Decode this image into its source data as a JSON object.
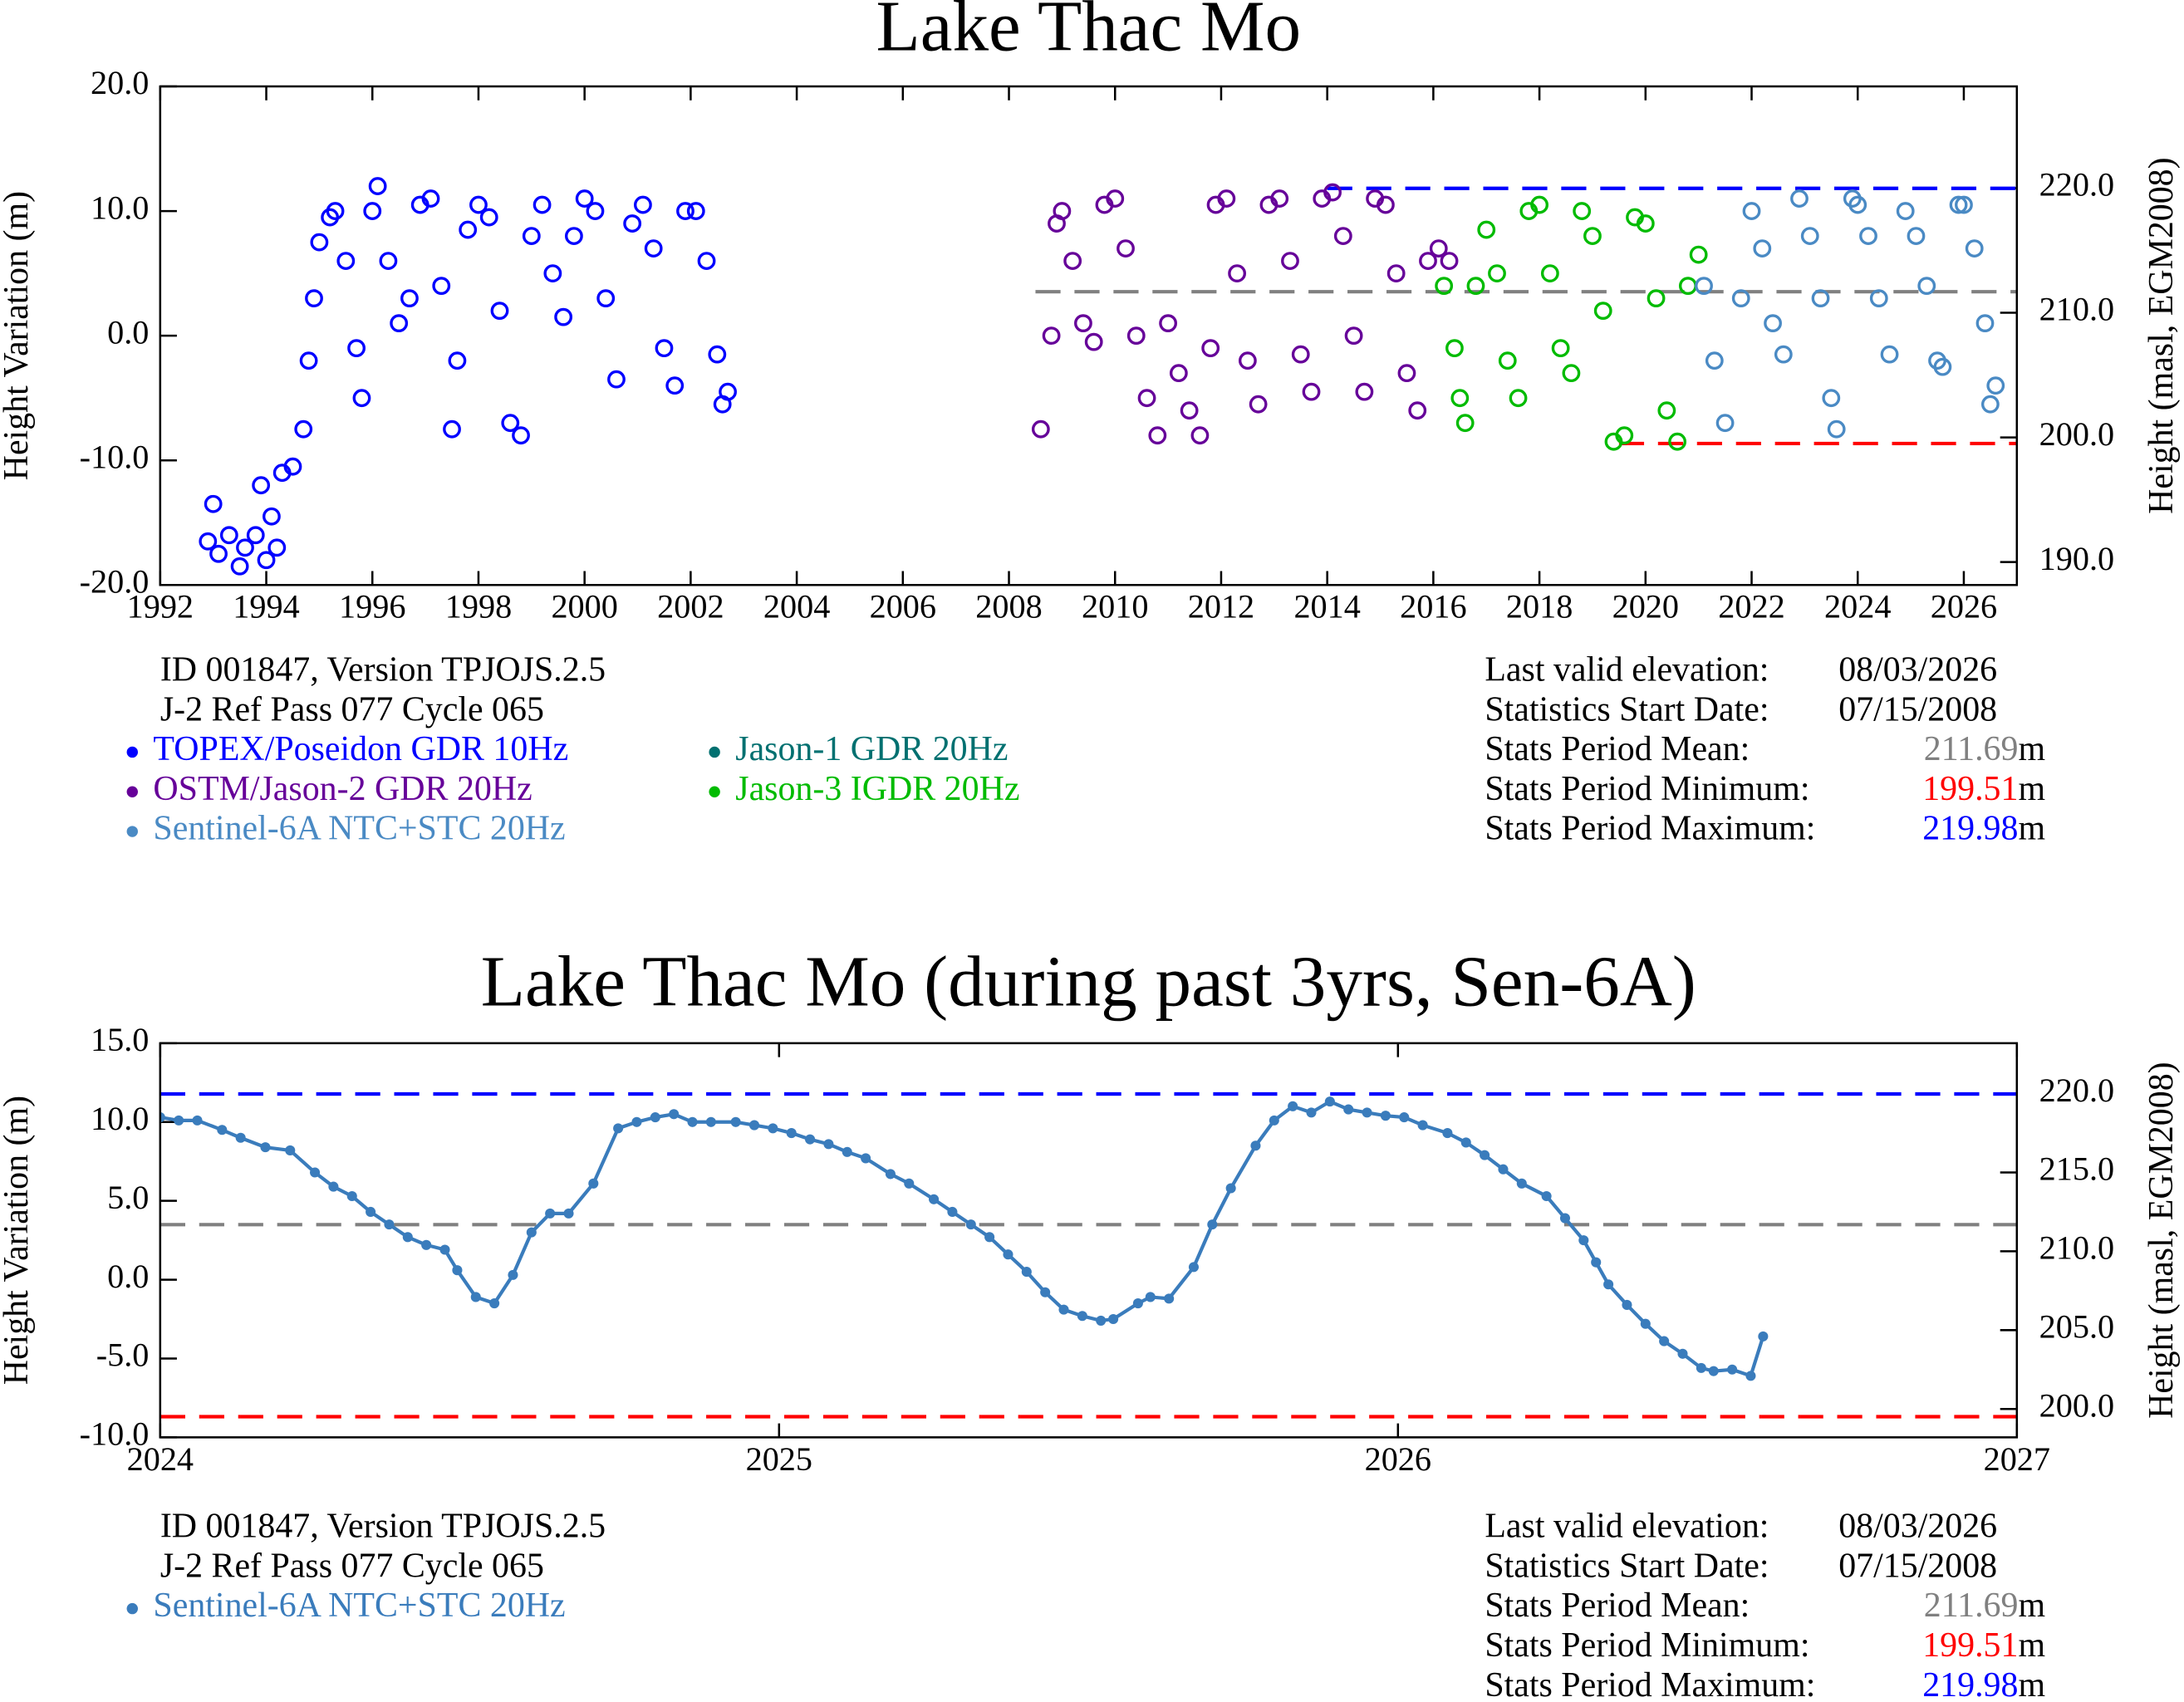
{
  "info": {
    "id": "ID 001847, Version TPJOJS.2.5",
    "pass": "J-2 Ref Pass 077 Cycle 065",
    "unit": "m",
    "dates": [
      {
        "label": "Last valid elevation:",
        "value": "08/03/2026"
      },
      {
        "label": "Statistics Start Date:",
        "value": "07/15/2008"
      }
    ],
    "stats": [
      {
        "label": "Stats Period Mean:",
        "value": 211.69,
        "color": "#808080"
      },
      {
        "label": "Stats Period Minimum:",
        "value": 199.51,
        "color": "#ff0000"
      },
      {
        "label": "Stats Period Maximum:",
        "value": 219.98,
        "color": "#0000ff"
      }
    ]
  },
  "chart_data": [
    {
      "type": "scatter",
      "title": "Lake Thac Mo",
      "ylabel": "Height Variation (m)",
      "y2label": "Height (masl, EGM2008)",
      "xlim": [
        1992,
        2027
      ],
      "xticks": [
        1992,
        1994,
        1996,
        1998,
        2000,
        2002,
        2004,
        2006,
        2008,
        2010,
        2012,
        2014,
        2016,
        2018,
        2020,
        2022,
        2024,
        2026
      ],
      "ylim": [
        -20,
        20
      ],
      "yticks": [
        {
          "value": -20,
          "label": "-20.0"
        },
        {
          "value": -10,
          "label": "-10.0"
        },
        {
          "value": 0,
          "label": "0.0"
        },
        {
          "value": 10,
          "label": "10.0"
        },
        {
          "value": 20,
          "label": "20.0"
        }
      ],
      "y2lim": [
        188.16,
        228.16
      ],
      "y2ticks": [
        {
          "value": 190,
          "label": "190.0"
        },
        {
          "value": 200,
          "label": "200.0"
        },
        {
          "value": 210,
          "label": "210.0"
        },
        {
          "value": 220,
          "label": "220.0"
        }
      ],
      "reference_lines": [
        {
          "value": 211.69,
          "color": "#808080",
          "x_start": 2008.5
        },
        {
          "value": 199.51,
          "color": "#ff0000",
          "x_start": 2019.5
        },
        {
          "value": 219.98,
          "color": "#0000ff",
          "x_start": 2014
        }
      ],
      "series": [
        {
          "name": "TOPEX/Poseidon GDR 10Hz",
          "color": "#0000ff",
          "x": [
            1992.9,
            1993.0,
            1993.1,
            1993.3,
            1993.5,
            1993.6,
            1993.8,
            1993.9,
            1994.0,
            1994.1,
            1994.2,
            1994.3,
            1994.5,
            1994.7,
            1994.8,
            1994.9,
            1995.0,
            1995.2,
            1995.3,
            1995.5,
            1995.7,
            1995.8,
            1996.0,
            1996.1,
            1996.3,
            1996.5,
            1996.7,
            1996.9,
            1997.1,
            1997.3,
            1997.5,
            1997.6,
            1997.8,
            1998.0,
            1998.2,
            1998.4,
            1998.6,
            1998.8,
            1999.0,
            1999.2,
            1999.4,
            1999.6,
            1999.8,
            2000.0,
            2000.2,
            2000.4,
            2000.6,
            2000.9,
            2001.1,
            2001.3,
            2001.5,
            2001.7,
            2001.9,
            2002.1,
            2002.3,
            2002.5,
            2002.6,
            2002.7
          ],
          "values": [
            -16.5,
            -13.5,
            -17.5,
            -16,
            -18.5,
            -17,
            -16,
            -12,
            -18,
            -14.5,
            -17,
            -11,
            -10.5,
            -7.5,
            -2,
            3,
            7.5,
            9.5,
            10,
            6,
            -1,
            -5,
            10,
            12,
            6,
            1,
            3,
            10.5,
            11,
            4,
            -7.5,
            -2,
            8.5,
            10.5,
            9.5,
            2,
            -7,
            -8,
            8,
            10.5,
            5,
            1.5,
            8,
            11,
            10,
            3,
            -3.5,
            9,
            10.5,
            7,
            -1,
            -4,
            10,
            10,
            6,
            -1.5,
            -5.5,
            -4.5
          ]
        },
        {
          "name": "Jason-1 GDR 20Hz",
          "color": "#007070",
          "x": [],
          "values": []
        },
        {
          "name": "OSTM/Jason-2 GDR 20Hz",
          "color": "#660099",
          "x": [
            2008.6,
            2008.8,
            2008.9,
            2009.0,
            2009.2,
            2009.4,
            2009.6,
            2009.8,
            2010.0,
            2010.2,
            2010.4,
            2010.6,
            2010.8,
            2011.0,
            2011.2,
            2011.4,
            2011.6,
            2011.8,
            2011.9,
            2012.1,
            2012.3,
            2012.5,
            2012.7,
            2012.9,
            2013.1,
            2013.3,
            2013.5,
            2013.7,
            2013.9,
            2014.1,
            2014.3,
            2014.5,
            2014.7,
            2014.9,
            2015.1,
            2015.3,
            2015.5,
            2015.7,
            2015.9,
            2016.1,
            2016.3
          ],
          "values": [
            -7.5,
            0,
            9,
            10,
            6,
            1,
            -0.5,
            10.5,
            11,
            7,
            0,
            -5,
            -8,
            1,
            -3,
            -6,
            -8,
            -1,
            10.5,
            11,
            5,
            -2,
            -5.5,
            10.5,
            11,
            6,
            -1.5,
            -4.5,
            11,
            11.5,
            8,
            0,
            -4.5,
            11,
            10.5,
            5,
            -3,
            -6,
            6,
            7,
            6
          ]
        },
        {
          "name": "Jason-3 IGDR 20Hz",
          "color": "#00bb00",
          "x": [
            2016.2,
            2016.4,
            2016.5,
            2016.6,
            2016.8,
            2017.0,
            2017.2,
            2017.4,
            2017.6,
            2017.8,
            2018.0,
            2018.2,
            2018.4,
            2018.6,
            2018.8,
            2019.0,
            2019.2,
            2019.4,
            2019.6,
            2019.8,
            2020.0,
            2020.2,
            2020.4,
            2020.6,
            2020.8,
            2021.0
          ],
          "values": [
            4,
            -1,
            -5,
            -7,
            4,
            8.5,
            5,
            -2,
            -5,
            10,
            10.5,
            5,
            -1,
            -3,
            10,
            8,
            2,
            -8.5,
            -8,
            9.5,
            9,
            3,
            -6,
            -8.5,
            4,
            6.5
          ]
        },
        {
          "name": "Sentinel-6A NTC+STC 20Hz",
          "color": "#4a8ac4",
          "x": [
            2021.1,
            2021.3,
            2021.5,
            2021.8,
            2022.0,
            2022.2,
            2022.4,
            2022.6,
            2022.9,
            2023.1,
            2023.3,
            2023.5,
            2023.6,
            2023.9,
            2024.0,
            2024.2,
            2024.4,
            2024.6,
            2024.9,
            2025.1,
            2025.3,
            2025.5,
            2025.6,
            2025.9,
            2026.0,
            2026.2,
            2026.4,
            2026.5,
            2026.6
          ],
          "values": [
            4,
            -2,
            -7,
            3,
            10,
            7,
            1,
            -1.5,
            11,
            8,
            3,
            -5,
            -7.5,
            11,
            10.5,
            8,
            3,
            -1.5,
            10,
            8,
            4,
            -2,
            -2.5,
            10.5,
            10.5,
            7,
            1,
            -5.5,
            -4
          ]
        }
      ]
    },
    {
      "type": "line",
      "title": "Lake Thac Mo (during past 3yrs, Sen-6A)",
      "ylabel": "Height Variation (m)",
      "y2label": "Height (masl, EGM2008)",
      "xlim": [
        2024,
        2027
      ],
      "xticks": [
        2024,
        2025,
        2026,
        2027
      ],
      "ylim": [
        -10,
        15
      ],
      "yticks": [
        {
          "value": -10,
          "label": "-10.0"
        },
        {
          "value": -5,
          "label": "-5.0"
        },
        {
          "value": 0,
          "label": "0.0"
        },
        {
          "value": 5,
          "label": "5.0"
        },
        {
          "value": 10,
          "label": "10.0"
        },
        {
          "value": 15,
          "label": "15.0"
        }
      ],
      "y2lim": [
        198.2,
        223.2
      ],
      "y2ticks": [
        {
          "value": 200,
          "label": "200.0"
        },
        {
          "value": 205,
          "label": "205.0"
        },
        {
          "value": 210,
          "label": "210.0"
        },
        {
          "value": 215,
          "label": "215.0"
        },
        {
          "value": 220,
          "label": "220.0"
        }
      ],
      "reference_lines": [
        {
          "value": 211.69,
          "color": "#808080",
          "x_start": 2024
        },
        {
          "value": 199.51,
          "color": "#ff0000",
          "x_start": 2024
        },
        {
          "value": 219.98,
          "color": "#0000ff",
          "x_start": 2024
        }
      ],
      "series": [
        {
          "name": "Sentinel-6A NTC+STC 20Hz",
          "color": "#3a7cbc",
          "x": [
            2024.0,
            2024.03,
            2024.06,
            2024.1,
            2024.13,
            2024.17,
            2024.21,
            2024.25,
            2024.28,
            2024.31,
            2024.34,
            2024.37,
            2024.4,
            2024.43,
            2024.46,
            2024.48,
            2024.51,
            2024.54,
            2024.57,
            2024.6,
            2024.63,
            2024.66,
            2024.7,
            2024.74,
            2024.77,
            2024.8,
            2024.83,
            2024.86,
            2024.89,
            2024.93,
            2024.96,
            2024.99,
            2025.02,
            2025.05,
            2025.08,
            2025.11,
            2025.14,
            2025.18,
            2025.21,
            2025.25,
            2025.28,
            2025.31,
            2025.34,
            2025.37,
            2025.4,
            2025.43,
            2025.46,
            2025.49,
            2025.52,
            2025.54,
            2025.58,
            2025.6,
            2025.63,
            2025.67,
            2025.7,
            2025.73,
            2025.77,
            2025.8,
            2025.83,
            2025.86,
            2025.89,
            2025.92,
            2025.95,
            2025.98,
            2026.01,
            2026.04,
            2026.08,
            2026.11,
            2026.14,
            2026.17,
            2026.2,
            2026.24,
            2026.27,
            2026.3,
            2026.32,
            2026.34,
            2026.37,
            2026.4,
            2026.43,
            2026.46,
            2026.49,
            2026.51,
            2026.54,
            2026.57,
            2026.59
          ],
          "values": [
            10.3,
            10.1,
            10.1,
            9.5,
            9,
            8.4,
            8.2,
            6.8,
            5.9,
            5.3,
            4.3,
            3.5,
            2.7,
            2.2,
            1.9,
            0.6,
            -1.1,
            -1.5,
            0.3,
            3,
            4.2,
            4.2,
            6.1,
            9.6,
            10,
            10.3,
            10.5,
            10,
            10,
            10,
            9.8,
            9.6,
            9.3,
            8.9,
            8.6,
            8.1,
            7.7,
            6.7,
            6.1,
            5.1,
            4.3,
            3.5,
            2.7,
            1.6,
            0.5,
            -0.8,
            -1.9,
            -2.3,
            -2.6,
            -2.5,
            -1.5,
            -1.1,
            -1.2,
            0.8,
            3.5,
            5.8,
            8.5,
            10.1,
            11,
            10.6,
            11.3,
            10.8,
            10.6,
            10.4,
            10.3,
            9.8,
            9.3,
            8.7,
            7.9,
            7,
            6.1,
            5.3,
            3.9,
            2.5,
            1.1,
            -0.3,
            -1.6,
            -2.8,
            -3.9,
            -4.7,
            -5.6,
            -5.8,
            -5.7,
            -6.1,
            -3.6
          ]
        }
      ]
    }
  ]
}
